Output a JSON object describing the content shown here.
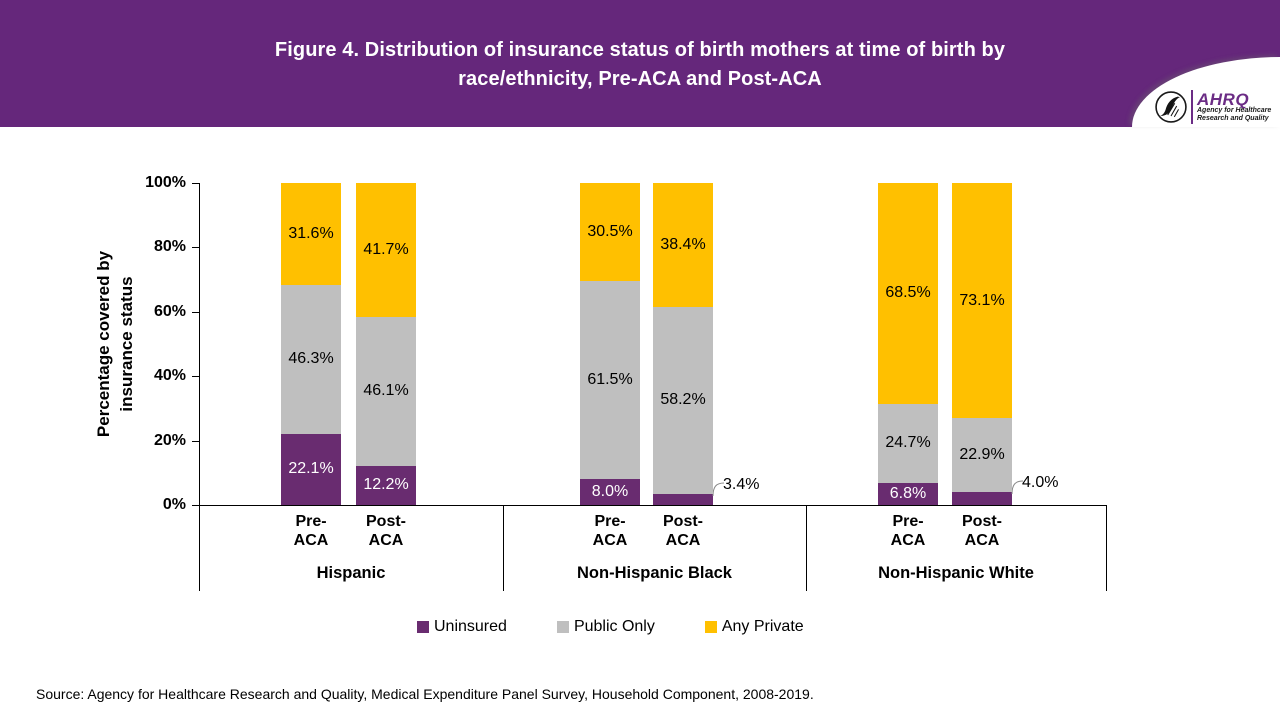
{
  "header": {
    "title_line1": "Figure 4. Distribution of insurance status of birth mothers at time of birth by",
    "title_line2": "race/ethnicity, Pre-ACA and Post-ACA",
    "logo": {
      "acronym": "AHRQ",
      "tagline_line1": "Agency for Healthcare",
      "tagline_line2": "Research and Quality"
    }
  },
  "chart_data": {
    "type": "bar",
    "stacked": true,
    "title": "Figure 4. Distribution of insurance status of birth mothers at time of birth by race/ethnicity, Pre-ACA and Post-ACA",
    "ylabel": "Percentage covered by insurance status",
    "ylabel_lines": [
      "Percentage covered by",
      "insurance status"
    ],
    "ylim": [
      0,
      100
    ],
    "ytick_labels": [
      "0%",
      "20%",
      "40%",
      "60%",
      "80%",
      "100%"
    ],
    "grid": false,
    "legend_position": "bottom",
    "groups": [
      "Hispanic",
      "Non-Hispanic Black",
      "Non-Hispanic White"
    ],
    "bar_categories": [
      "Pre-ACA",
      "Post-ACA"
    ],
    "bar_category_lines": [
      [
        "Pre-",
        "ACA"
      ],
      [
        "Post-",
        "ACA"
      ]
    ],
    "series": [
      {
        "name": "Uninsured",
        "color": "#692C70",
        "label_color": "#FFFFFF",
        "values": [
          22.1,
          12.2,
          8.0,
          3.4,
          6.8,
          4.0
        ]
      },
      {
        "name": "Public Only",
        "color": "#BFBFBF",
        "label_color": "#000000",
        "values": [
          46.3,
          46.1,
          61.5,
          58.2,
          24.7,
          22.9
        ]
      },
      {
        "name": "Any Private",
        "color": "#FFC000",
        "label_color": "#000000",
        "values": [
          31.6,
          41.7,
          30.5,
          38.4,
          68.5,
          73.1
        ]
      }
    ],
    "outside_labeled_bars": [
      3,
      5
    ],
    "leader_color": "#898989"
  },
  "source": "Source: Agency for Healthcare Research and Quality, Medical Expenditure Panel Survey, Household Component, 2008-2019."
}
